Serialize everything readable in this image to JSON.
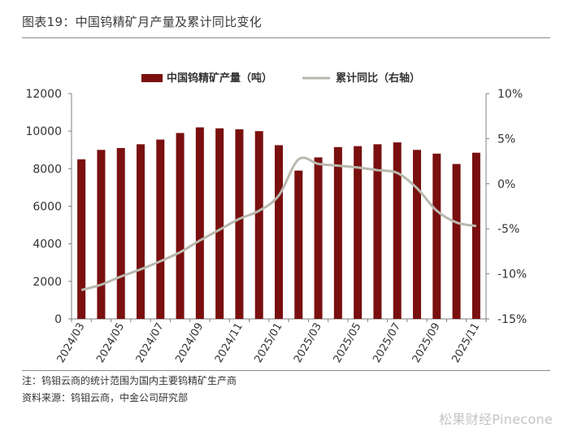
{
  "figure_title": "图表19：中国钨精矿月产量及累计同比变化",
  "note": "注：钨钼云商的统计范围为国内主要钨精矿生产商",
  "source": "资料来源：钨钼云商，中金公司研究部",
  "watermark": "松果财经Pinecone",
  "colors": {
    "bar": "#7a0f0f",
    "line": "#b9b8ad",
    "axis": "#7f7f7f",
    "text": "#333333"
  },
  "chart_data": {
    "type": "bar",
    "title": "",
    "legend_position": "top-center",
    "grid": false,
    "categories": [
      "2024/03",
      "2024/04",
      "2024/05",
      "2024/06",
      "2024/07",
      "2024/08",
      "2024/09",
      "2024/10",
      "2024/11",
      "2024/12",
      "2025/01",
      "2025/02",
      "2025/03",
      "2025/04",
      "2025/05",
      "2025/06",
      "2025/07",
      "2025/08",
      "2025/09",
      "2025/10",
      "2025/11"
    ],
    "x_tick_labels": [
      "2024/03",
      "2024/05",
      "2024/07",
      "2024/09",
      "2024/11",
      "2025/01",
      "2025/03",
      "2025/05",
      "2025/07",
      "2025/09",
      "2025/11"
    ],
    "series": [
      {
        "name": "中国钨精矿产量（吨）",
        "type": "bar",
        "axis": "left",
        "values": [
          8500,
          9000,
          9100,
          9300,
          9550,
          9900,
          10200,
          10150,
          10100,
          10000,
          9250,
          7900,
          8600,
          9150,
          9200,
          9300,
          9400,
          9000,
          8800,
          8250,
          8850
        ]
      },
      {
        "name": "累计同比（右轴）",
        "type": "line",
        "axis": "right",
        "values": [
          -11.8,
          -11.2,
          -10.3,
          -9.5,
          -8.6,
          -7.6,
          -6.3,
          -5.1,
          -3.9,
          -3.0,
          -1.3,
          2.7,
          2.2,
          2.0,
          1.8,
          1.5,
          1.2,
          -0.5,
          -3.0,
          -4.3,
          -4.7
        ]
      }
    ],
    "y_left": {
      "min": 0,
      "max": 12000,
      "ticks": [
        0,
        2000,
        4000,
        6000,
        8000,
        10000,
        12000
      ],
      "tick_labels": [
        "0",
        "2000",
        "4000",
        "6000",
        "8000",
        "10000",
        "12000"
      ]
    },
    "y_right": {
      "min": -15,
      "max": 10,
      "ticks": [
        -15,
        -10,
        -5,
        0,
        5,
        10
      ],
      "tick_labels": [
        "-15%",
        "-10%",
        "-5%",
        "0%",
        "5%",
        "10%"
      ]
    }
  }
}
